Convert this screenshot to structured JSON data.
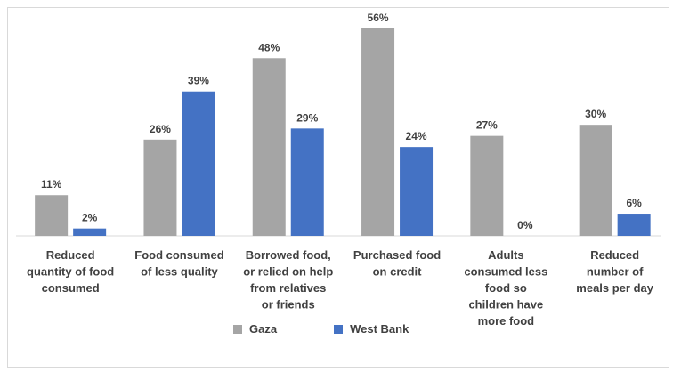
{
  "chart_data": {
    "type": "bar",
    "title": "",
    "xlabel": "",
    "ylabel": "",
    "ylim": [
      0,
      60
    ],
    "grid": false,
    "legend_position": "bottom",
    "categories": [
      [
        "Reduced",
        "quantity of food",
        "consumed"
      ],
      [
        "Food consumed",
        "of less quality"
      ],
      [
        "Borrowed food,",
        "or relied on help",
        "from relatives",
        "or friends"
      ],
      [
        "Purchased food",
        "on credit"
      ],
      [
        "Adults",
        "consumed less",
        "food so",
        "children have",
        "more food"
      ],
      [
        "Reduced",
        "number of",
        "meals per day"
      ]
    ],
    "series": [
      {
        "name": "Gaza",
        "color": "#a5a5a5",
        "values": [
          11,
          26,
          48,
          56,
          27,
          30
        ],
        "labels": [
          "11%",
          "26%",
          "48%",
          "56%",
          "27%",
          "30%"
        ]
      },
      {
        "name": "West Bank",
        "color": "#4472c4",
        "values": [
          2,
          39,
          29,
          24,
          0,
          6
        ],
        "labels": [
          "2%",
          "39%",
          "29%",
          "24%",
          "0%",
          "6%"
        ]
      }
    ]
  },
  "legend": {
    "gaza_label": "Gaza",
    "west_bank_label": "West Bank"
  }
}
